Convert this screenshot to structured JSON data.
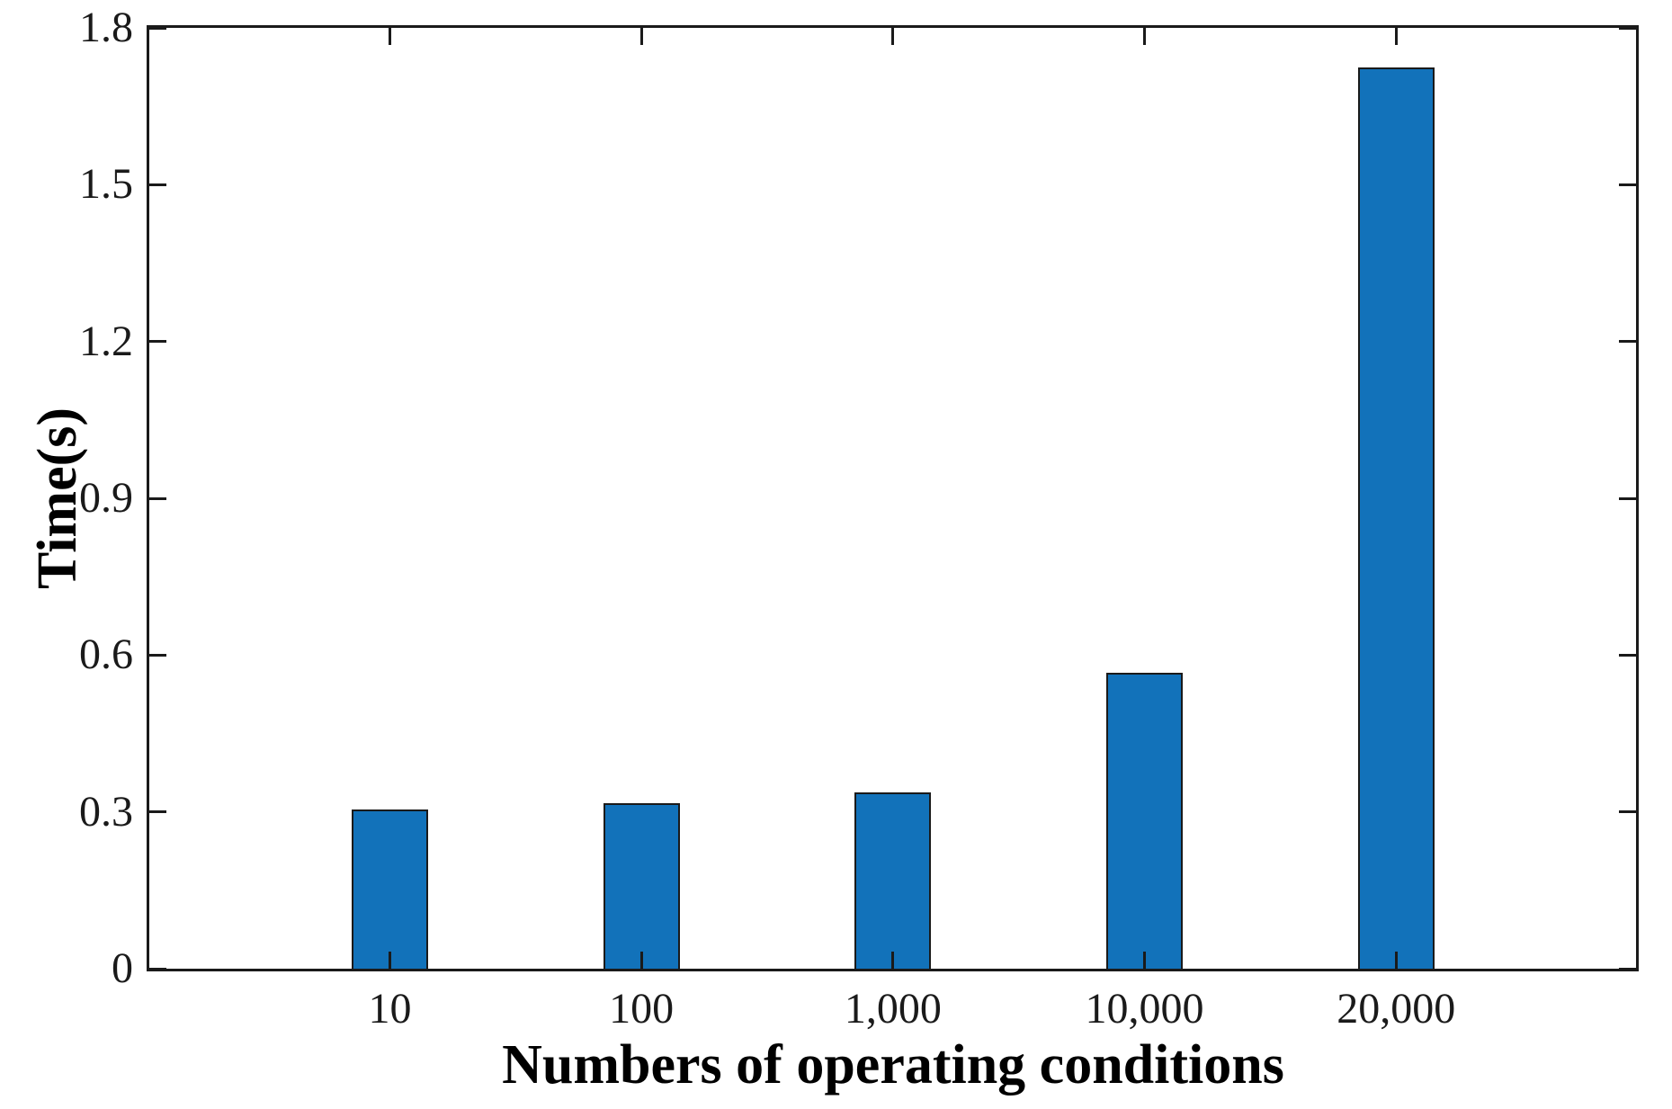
{
  "figure": {
    "background": "#ffffff"
  },
  "chart_data": {
    "type": "bar",
    "title": "",
    "xlabel": "Numbers of operating conditions",
    "ylabel": "Time(s)",
    "categories": [
      "10",
      "100",
      "1,000",
      "10,000",
      "20,000"
    ],
    "values": [
      0.305,
      0.316,
      0.337,
      0.567,
      1.724
    ],
    "ylim": [
      0,
      1.8
    ],
    "yticks": [
      0,
      0.3,
      0.6,
      0.9,
      1.2,
      1.5,
      1.8
    ],
    "ytick_labels": [
      "0",
      "0.3",
      "0.6",
      "0.9",
      "1.2",
      "1.5",
      "1.8"
    ],
    "grid": false,
    "legend": null,
    "ticks_direction": "in",
    "box": true,
    "bar_color": "#1272ba",
    "bar_edge_color": "#1a1a1a",
    "axis_color": "#1a1a1a",
    "tick_label_color": "#1a1a1a",
    "label_color": "#000000"
  }
}
